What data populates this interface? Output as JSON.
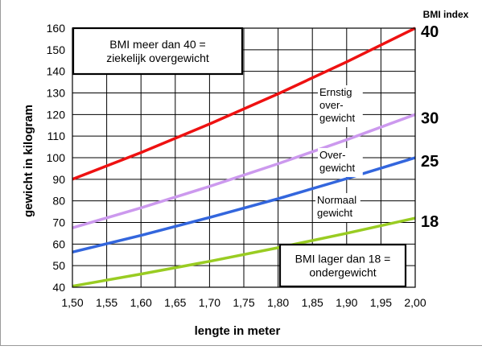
{
  "chart_data": {
    "type": "line",
    "xlabel": "lengte in meter",
    "ylabel": "gewicht in kilogram",
    "xlim": [
      1.5,
      2.0
    ],
    "ylim": [
      40,
      160
    ],
    "grid": true,
    "x_ticks": [
      "1,50",
      "1,55",
      "1,60",
      "1,65",
      "1,70",
      "1,75",
      "1,80",
      "1,85",
      "1,90",
      "1,95",
      "2,00"
    ],
    "y_ticks": [
      "40",
      "50",
      "60",
      "70",
      "80",
      "90",
      "100",
      "110",
      "120",
      "130",
      "140",
      "150",
      "160"
    ],
    "legend_title": "BMI index",
    "series": [
      {
        "name": "40",
        "color": "#ee1111",
        "bmi": 40,
        "x": [
          1.5,
          1.6,
          1.7,
          1.8,
          1.9,
          2.0
        ],
        "values": [
          90,
          102.4,
          115.6,
          129.6,
          144.4,
          160
        ]
      },
      {
        "name": "30",
        "color": "#cc99ee",
        "bmi": 30,
        "x": [
          1.5,
          1.6,
          1.7,
          1.8,
          1.9,
          2.0
        ],
        "values": [
          67.5,
          76.8,
          86.7,
          97.2,
          108.3,
          120
        ]
      },
      {
        "name": "25",
        "color": "#3366dd",
        "bmi": 25,
        "x": [
          1.5,
          1.6,
          1.7,
          1.8,
          1.9,
          2.0
        ],
        "values": [
          56.3,
          64,
          72.3,
          81,
          90.3,
          100
        ]
      },
      {
        "name": "18",
        "color": "#99cc22",
        "bmi": 18,
        "x": [
          1.5,
          1.6,
          1.7,
          1.8,
          1.9,
          2.0
        ],
        "values": [
          40.5,
          46.1,
          52,
          58.3,
          65,
          72
        ]
      }
    ],
    "annotations": {
      "zones": [
        {
          "lines": [
            "Ernstig",
            "over-",
            "gewicht"
          ]
        },
        {
          "lines": [
            "Over-",
            "gewicht"
          ]
        },
        {
          "lines": [
            "Normaal",
            "gewicht"
          ]
        }
      ],
      "box_top": {
        "lines": [
          "BMI meer dan 40 =",
          "ziekelijk overgewicht"
        ]
      },
      "box_bottom": {
        "lines": [
          "BMI lager dan 18 =",
          "ondergewicht"
        ]
      }
    }
  }
}
